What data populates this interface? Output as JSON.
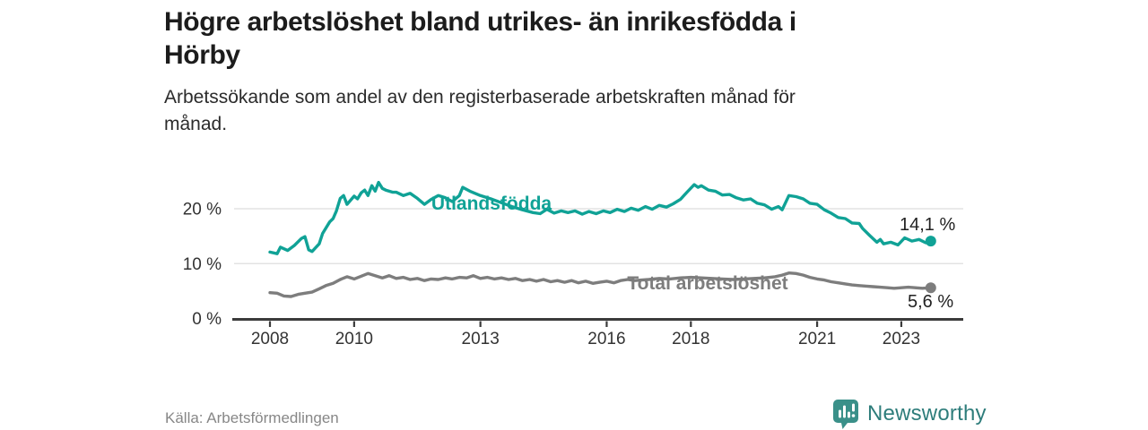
{
  "header": {
    "title_lines": [
      "Högre arbetslöshet bland utrikes- än inrikesfödda i",
      "Hörby"
    ],
    "subtitle_lines": [
      "Arbetssökande som andel av den registerbaserade arbetskraften månad för",
      "månad."
    ]
  },
  "footer": {
    "source": "Källa: Arbetsförmedlingen",
    "brand": {
      "name": "Newsworthy",
      "icon": "bar-chart-bubble-icon"
    }
  },
  "colors": {
    "foreign_born_line": "#10a296",
    "total_line": "#7d7d7d",
    "grid": "#e3e3e3",
    "axis": "#3b3b3b",
    "tick_text": "#333333",
    "value_text": "#222222",
    "brand_teal": "#2e7d7b",
    "brand_icon_teal": "#3a9089"
  },
  "chart_data": {
    "type": "line",
    "title": "Högre arbetslöshet bland utrikes- än inrikesfödda i Hörby",
    "subtitle": "Arbetssökande som andel av den registerbaserade arbetskraften månad för månad.",
    "xlabel": "",
    "ylabel": "",
    "grid": "horizontal",
    "legend_position": "inline-labels",
    "xlim": [
      2007.85,
      2024.1
    ],
    "ylim": [
      0,
      26
    ],
    "x_ticks": [
      {
        "value": 2008,
        "label": "2008"
      },
      {
        "value": 2010,
        "label": "2010"
      },
      {
        "value": 2013,
        "label": "2013"
      },
      {
        "value": 2016,
        "label": "2016"
      },
      {
        "value": 2018,
        "label": "2018"
      },
      {
        "value": 2021,
        "label": "2021"
      },
      {
        "value": 2023,
        "label": "2023"
      }
    ],
    "y_ticks": [
      {
        "value": 20,
        "label": "20 %"
      },
      {
        "value": 10,
        "label": "10 %"
      },
      {
        "value": 0,
        "label": "0 %"
      }
    ],
    "series": [
      {
        "name": "Utlandsfödda",
        "color_key": "foreign_born_line",
        "end_label": "14,1 %",
        "end_value": 14.1,
        "x": [
          2008.0,
          2008.17,
          2008.25,
          2008.42,
          2008.58,
          2008.75,
          2008.83,
          2008.92,
          2009.0,
          2009.17,
          2009.25,
          2009.42,
          2009.5,
          2009.58,
          2009.67,
          2009.75,
          2009.83,
          2010.0,
          2010.08,
          2010.17,
          2010.25,
          2010.33,
          2010.42,
          2010.5,
          2010.58,
          2010.67,
          2010.75,
          2010.92,
          2011.0,
          2011.17,
          2011.33,
          2011.5,
          2011.67,
          2011.83,
          2012.0,
          2012.17,
          2012.33,
          2012.5,
          2012.58,
          2012.75,
          2013.0,
          2013.25,
          2013.5,
          2013.75,
          2014.0,
          2014.25,
          2014.42,
          2014.58,
          2014.75,
          2014.92,
          2015.08,
          2015.25,
          2015.42,
          2015.58,
          2015.75,
          2015.92,
          2016.08,
          2016.25,
          2016.42,
          2016.58,
          2016.75,
          2016.92,
          2017.08,
          2017.25,
          2017.42,
          2017.58,
          2017.75,
          2017.92,
          2018.08,
          2018.17,
          2018.25,
          2018.42,
          2018.58,
          2018.75,
          2018.92,
          2019.08,
          2019.25,
          2019.42,
          2019.58,
          2019.75,
          2019.92,
          2020.08,
          2020.17,
          2020.33,
          2020.5,
          2020.67,
          2020.83,
          2021.0,
          2021.17,
          2021.33,
          2021.5,
          2021.67,
          2021.83,
          2022.0,
          2022.08,
          2022.25,
          2022.42,
          2022.5,
          2022.58,
          2022.75,
          2022.92,
          2023.08,
          2023.25,
          2023.42,
          2023.58,
          2023.7
        ],
        "values": [
          12.1,
          11.8,
          13.0,
          12.4,
          13.3,
          14.6,
          14.9,
          12.5,
          12.2,
          13.6,
          15.5,
          17.6,
          18.2,
          19.6,
          21.9,
          22.4,
          20.8,
          22.3,
          21.8,
          22.9,
          23.4,
          22.4,
          24.2,
          23.2,
          24.8,
          23.7,
          23.4,
          23.0,
          23.0,
          22.4,
          22.8,
          21.9,
          20.8,
          21.7,
          22.4,
          22.0,
          21.3,
          22.4,
          23.9,
          23.2,
          22.4,
          21.8,
          21.1,
          20.4,
          19.8,
          19.3,
          19.1,
          19.9,
          19.2,
          19.6,
          19.3,
          19.6,
          19.0,
          19.5,
          19.1,
          19.6,
          19.3,
          19.9,
          19.5,
          20.1,
          19.7,
          20.4,
          19.9,
          20.6,
          20.3,
          20.9,
          21.7,
          23.1,
          24.4,
          23.9,
          24.2,
          23.4,
          23.2,
          22.5,
          22.6,
          22.0,
          21.6,
          21.8,
          21.0,
          20.7,
          19.9,
          20.4,
          19.8,
          22.4,
          22.2,
          21.8,
          21.0,
          20.8,
          19.8,
          19.2,
          18.4,
          18.2,
          17.4,
          17.3,
          16.4,
          15.1,
          13.9,
          14.4,
          13.6,
          13.9,
          13.4,
          14.7,
          14.1,
          14.4,
          13.8,
          14.1
        ]
      },
      {
        "name": "Total arbetslöshet",
        "color_key": "total_line",
        "end_label": "5,6 %",
        "end_value": 5.6,
        "x": [
          2008.0,
          2008.17,
          2008.33,
          2008.5,
          2008.67,
          2008.83,
          2009.0,
          2009.17,
          2009.33,
          2009.5,
          2009.67,
          2009.83,
          2010.0,
          2010.17,
          2010.33,
          2010.5,
          2010.67,
          2010.83,
          2011.0,
          2011.17,
          2011.33,
          2011.5,
          2011.67,
          2011.83,
          2012.0,
          2012.17,
          2012.33,
          2012.5,
          2012.67,
          2012.83,
          2013.0,
          2013.17,
          2013.33,
          2013.5,
          2013.67,
          2013.83,
          2014.0,
          2014.17,
          2014.33,
          2014.5,
          2014.67,
          2014.83,
          2015.0,
          2015.17,
          2015.33,
          2015.5,
          2015.67,
          2015.83,
          2016.0,
          2016.17,
          2016.33,
          2016.5,
          2016.67,
          2016.83,
          2017.0,
          2017.25,
          2017.5,
          2017.75,
          2018.0,
          2018.25,
          2018.5,
          2018.75,
          2019.0,
          2019.25,
          2019.5,
          2019.75,
          2020.0,
          2020.17,
          2020.33,
          2020.5,
          2020.67,
          2020.83,
          2021.0,
          2021.17,
          2021.33,
          2021.5,
          2021.67,
          2021.83,
          2022.0,
          2022.17,
          2022.33,
          2022.5,
          2022.67,
          2022.83,
          2023.0,
          2023.17,
          2023.33,
          2023.5,
          2023.7
        ],
        "values": [
          4.7,
          4.6,
          4.1,
          4.0,
          4.4,
          4.6,
          4.8,
          5.4,
          6.0,
          6.4,
          7.1,
          7.6,
          7.2,
          7.7,
          8.2,
          7.8,
          7.4,
          7.8,
          7.3,
          7.5,
          7.1,
          7.3,
          6.9,
          7.2,
          7.1,
          7.4,
          7.2,
          7.5,
          7.4,
          7.8,
          7.3,
          7.5,
          7.2,
          7.4,
          7.1,
          7.3,
          6.9,
          7.1,
          6.8,
          7.1,
          6.7,
          6.9,
          6.6,
          6.9,
          6.5,
          6.8,
          6.4,
          6.6,
          6.8,
          6.5,
          6.9,
          7.1,
          6.9,
          7.0,
          7.1,
          7.3,
          7.2,
          7.4,
          7.5,
          7.4,
          7.3,
          7.2,
          7.1,
          7.2,
          7.3,
          7.4,
          7.6,
          7.9,
          8.3,
          8.2,
          7.9,
          7.5,
          7.2,
          7.0,
          6.7,
          6.5,
          6.3,
          6.1,
          6.0,
          5.9,
          5.8,
          5.7,
          5.6,
          5.5,
          5.6,
          5.7,
          5.6,
          5.5,
          5.6
        ]
      }
    ]
  }
}
